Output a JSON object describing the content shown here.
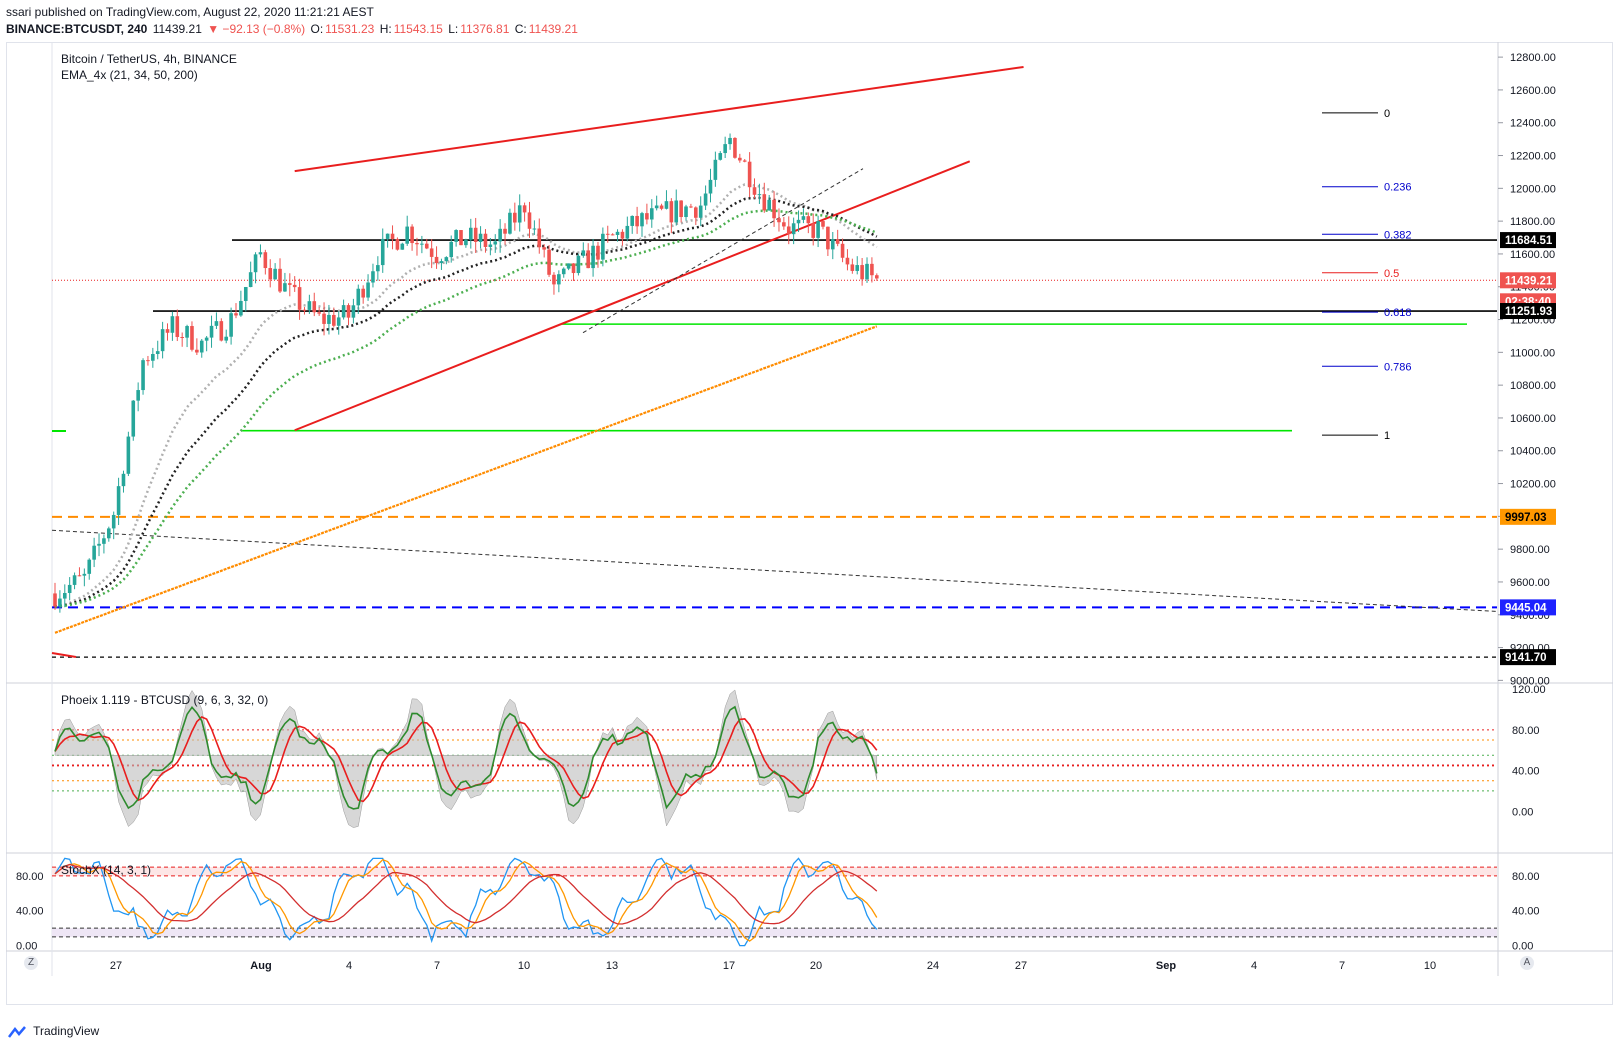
{
  "publish_line": "ssari published on TradingView.com, August 22, 2020 11:21:21 AEST",
  "symbol_line": {
    "symbol": "BINANCE:BTCUSDT, 240",
    "price": "11439.21",
    "change": "▼ −92.13 (−0.8%)",
    "o_label": "O:",
    "o": "11531.23",
    "h_label": "H:",
    "h": "11543.15",
    "l_label": "L:",
    "l": "11376.81",
    "c_label": "C:",
    "c": "11439.21"
  },
  "main_legend": {
    "title": "Bitcoin / TetherUS, 4h, BINANCE",
    "indicator": "EMA_4x (21, 34, 50, 200)"
  },
  "phoeix_legend": "Phoeix 1.119 - BTCUSD (9, 6, 3, 32, 0)",
  "stochx_legend": "StochX (14, 3, 1)",
  "footer_brand": "TradingView",
  "corner_left": "Z",
  "corner_right": "A",
  "colors": {
    "up": "#26a69a",
    "down": "#ef5350",
    "wedge": "#e91e1e",
    "support_green": "#00e600",
    "orange": "#ff8c00",
    "blue": "#0000ff",
    "ema21": "#b0b0b0",
    "ema34": "#222222",
    "ema50": "#4caf50",
    "ema200": "#ff8c00"
  },
  "chart_data": {
    "type": "candlestick",
    "title": "Bitcoin / TetherUS, 4h, BINANCE",
    "price_axis": {
      "ticks": [
        "12800.00",
        "12600.00",
        "12400.00",
        "12200.00",
        "12000.00",
        "11800.00",
        "11600.00",
        "11400.00",
        "11200.00",
        "11000.00",
        "10800.00",
        "10600.00",
        "10400.00",
        "10200.00",
        "10000.00",
        "9800.00",
        "9600.00",
        "9400.00",
        "9200.00",
        "9000.00"
      ],
      "range": [
        8990,
        12880
      ]
    },
    "x_axis": {
      "labels": [
        "27",
        "Aug",
        "4",
        "7",
        "10",
        "13",
        "17",
        "20",
        "24",
        "27",
        "Sep",
        "4",
        "7",
        "10"
      ]
    },
    "price_badges": [
      {
        "text": "11684.51",
        "style": "black"
      },
      {
        "text": "11439.21",
        "style": "red"
      },
      {
        "text": "02:38:40",
        "style": "red"
      },
      {
        "text": "11251.93",
        "style": "black"
      },
      {
        "text": "9997.03",
        "style": "orange"
      },
      {
        "text": "9445.04",
        "style": "blue"
      },
      {
        "text": "9141.70",
        "style": "black"
      }
    ],
    "fib_levels": [
      {
        "label": "0",
        "price": 12460,
        "color": "#000000"
      },
      {
        "label": "0.236",
        "price": 12010,
        "color": "#0000cc"
      },
      {
        "label": "0.382",
        "price": 11720,
        "color": "#0000cc"
      },
      {
        "label": "0.5",
        "price": 11485,
        "color": "#e91e1e"
      },
      {
        "label": "0.618",
        "price": 11245,
        "color": "#0000cc"
      },
      {
        "label": "0.786",
        "price": 10915,
        "color": "#0000cc"
      },
      {
        "label": "1",
        "price": 10495,
        "color": "#000000"
      }
    ],
    "horizontal_levels": [
      {
        "price": 11684.51,
        "style": "solid",
        "color": "#000000"
      },
      {
        "price": 11251.93,
        "style": "solid",
        "color": "#000000"
      },
      {
        "price": 11172,
        "style": "solid",
        "color": "#00e600"
      },
      {
        "price": 10522,
        "style": "solid",
        "color": "#00e600"
      },
      {
        "price": 9997.03,
        "style": "dashed",
        "color": "#ff8c00"
      },
      {
        "price": 9445.04,
        "style": "dashed",
        "color": "#0000ff"
      },
      {
        "price": 9141.7,
        "style": "dashed",
        "color": "#000000"
      },
      {
        "price": 11439.21,
        "style": "dotted",
        "color": "#e91e1e"
      }
    ],
    "rising_wedge": {
      "upper": [
        [
          "Aug 2 04:00",
          12105
        ],
        [
          "Aug 27 00:00",
          12740
        ]
      ],
      "lower": [
        [
          "Aug 2 04:00",
          10525
        ],
        [
          "Aug 25 04:00",
          12165
        ]
      ]
    },
    "close_path": [
      [
        "Jul 25",
        9530
      ],
      [
        "Jul 26",
        9620
      ],
      [
        "Jul 27",
        10020
      ],
      [
        "Jul 28",
        10950
      ],
      [
        "Jul 29",
        11150
      ],
      [
        "Jul 30",
        11050
      ],
      [
        "Jul 31",
        11200
      ],
      [
        "Aug 1",
        11600
      ],
      [
        "Aug 2",
        11350
      ],
      [
        "Aug 3",
        11200
      ],
      [
        "Aug 4",
        11220
      ],
      [
        "Aug 5",
        11600
      ],
      [
        "Aug 6",
        11750
      ],
      [
        "Aug 7",
        11600
      ],
      [
        "Aug 8",
        11700
      ],
      [
        "Aug 9",
        11650
      ],
      [
        "Aug 10",
        11900
      ],
      [
        "Aug 11",
        11400
      ],
      [
        "Aug 12",
        11550
      ],
      [
        "Aug 13",
        11700
      ],
      [
        "Aug 14",
        11800
      ],
      [
        "Aug 15",
        11860
      ],
      [
        "Aug 16",
        11900
      ],
      [
        "Aug 17",
        12300
      ],
      [
        "Aug 18",
        11980
      ],
      [
        "Aug 19",
        11760
      ],
      [
        "Aug 20",
        11750
      ],
      [
        "Aug 21",
        11530
      ],
      [
        "Aug 22",
        11439
      ]
    ],
    "phoeix": {
      "axis_ticks": [
        "120.00",
        "80.00",
        "40.00",
        "0.00"
      ],
      "range": [
        -40,
        125
      ],
      "levels": [
        80,
        70,
        55,
        45,
        30,
        20
      ]
    },
    "stochx": {
      "axis_ticks": [
        "80.00",
        "40.00",
        "0.00"
      ],
      "range": [
        -5,
        105
      ],
      "levels": [
        90,
        80,
        20,
        10
      ]
    }
  }
}
